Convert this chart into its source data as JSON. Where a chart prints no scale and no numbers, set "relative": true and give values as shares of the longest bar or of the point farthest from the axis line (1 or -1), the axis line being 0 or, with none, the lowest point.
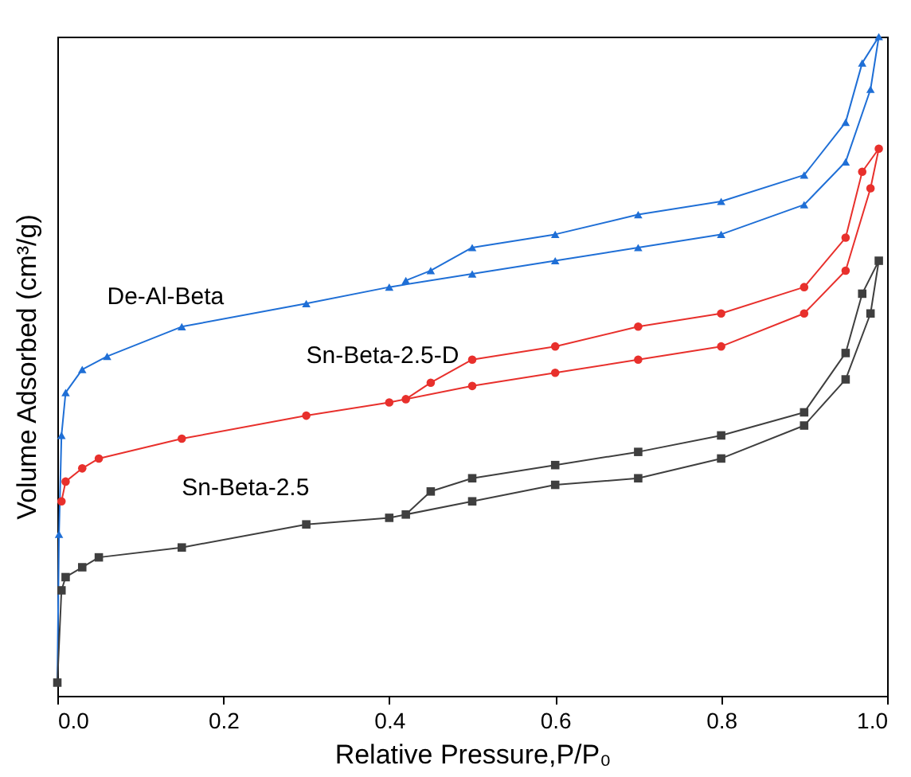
{
  "chart_data": {
    "type": "line",
    "relative": true,
    "xlabel": "Relative Pressure,P/P₀",
    "ylabel": "Volume Adsorbed (cm³/g)",
    "xlim": [
      0,
      1
    ],
    "xticks": [
      {
        "value": 0,
        "label": "0.0"
      },
      0.2,
      0.4,
      0.6,
      0.8,
      {
        "value": 1,
        "label": "1.0"
      }
    ],
    "grid": false,
    "line_style": "solid",
    "series": [
      {
        "name": "De-Al-Beta",
        "color": "#1f6fd6",
        "marker": "triangle",
        "x": [
          0,
          0.002,
          0.005,
          0.01,
          0.03,
          0.06,
          0.15,
          0.3,
          0.4,
          0.5,
          0.6,
          0.7,
          0.8,
          0.9,
          0.95,
          0.98,
          0.99,
          0.97,
          0.95,
          0.9,
          0.8,
          0.7,
          0.6,
          0.5,
          0.45,
          0.42
        ],
        "values": [
          0.02,
          0.245,
          0.395,
          0.46,
          0.495,
          0.515,
          0.56,
          0.595,
          0.62,
          0.64,
          0.66,
          0.68,
          0.7,
          0.745,
          0.81,
          0.92,
          1.0,
          0.96,
          0.87,
          0.79,
          0.75,
          0.73,
          0.7,
          0.68,
          0.645,
          0.63
        ]
      },
      {
        "name": "Sn-Beta-2.5-D",
        "color": "#e8302c",
        "marker": "circle",
        "x": [
          0.005,
          0.01,
          0.03,
          0.05,
          0.15,
          0.3,
          0.4,
          0.5,
          0.6,
          0.7,
          0.8,
          0.9,
          0.95,
          0.98,
          0.99,
          0.97,
          0.95,
          0.9,
          0.8,
          0.7,
          0.6,
          0.5,
          0.45,
          0.42
        ],
        "values": [
          0.295,
          0.325,
          0.345,
          0.36,
          0.39,
          0.425,
          0.445,
          0.47,
          0.49,
          0.51,
          0.53,
          0.58,
          0.645,
          0.77,
          0.83,
          0.795,
          0.695,
          0.62,
          0.58,
          0.56,
          0.53,
          0.51,
          0.475,
          0.45
        ]
      },
      {
        "name": "Sn-Beta-2.5",
        "color": "#3f3f3f",
        "marker": "square",
        "x": [
          0,
          0.005,
          0.01,
          0.03,
          0.05,
          0.15,
          0.3,
          0.4,
          0.5,
          0.6,
          0.7,
          0.8,
          0.9,
          0.95,
          0.98,
          0.99,
          0.97,
          0.95,
          0.9,
          0.8,
          0.7,
          0.6,
          0.5,
          0.45,
          0.42
        ],
        "values": [
          0.02,
          0.16,
          0.18,
          0.195,
          0.21,
          0.225,
          0.26,
          0.27,
          0.295,
          0.32,
          0.33,
          0.36,
          0.41,
          0.48,
          0.58,
          0.66,
          0.61,
          0.52,
          0.43,
          0.395,
          0.37,
          0.35,
          0.33,
          0.31,
          0.275
        ]
      }
    ]
  }
}
